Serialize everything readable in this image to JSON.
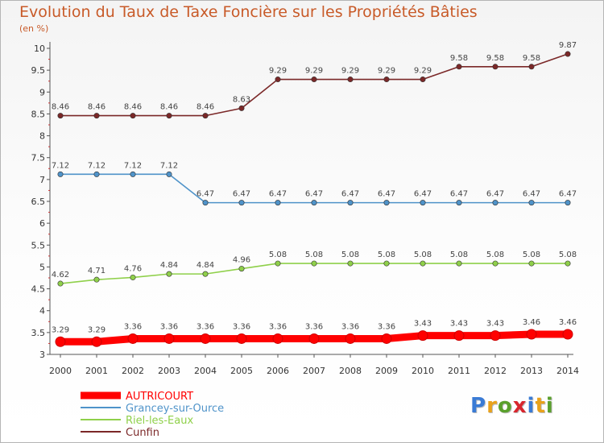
{
  "title": "Evolution du Taux de Taxe Foncière sur les Propriétés Bâties",
  "unit_label": "(en %)",
  "logo": {
    "text": "Proxiti",
    "letters": [
      {
        "ch": "P",
        "color": "#3a7bd5"
      },
      {
        "ch": "r",
        "color": "#e9a21b"
      },
      {
        "ch": "o",
        "color": "#5aa02c"
      },
      {
        "ch": "x",
        "color": "#d8262e"
      },
      {
        "ch": "i",
        "color": "#3a7bd5"
      },
      {
        "ch": "t",
        "color": "#e9a21b"
      },
      {
        "ch": "i",
        "color": "#5aa02c"
      }
    ]
  },
  "chart_data": {
    "type": "line",
    "x": [
      "2000",
      "2001",
      "2002",
      "2003",
      "2004",
      "2005",
      "2006",
      "2007",
      "2008",
      "2009",
      "2010",
      "2011",
      "2012",
      "2013",
      "2014"
    ],
    "ylim": [
      3,
      10
    ],
    "yticks": [
      3,
      3.5,
      4,
      4.5,
      5,
      5.5,
      6,
      6.5,
      7,
      7.5,
      8,
      8.5,
      9,
      9.5,
      10
    ],
    "grid": false,
    "legend_position": "bottom-left",
    "series": [
      {
        "name": "AUTRICOURT",
        "color": "#ff0000",
        "values": [
          3.29,
          3.29,
          3.36,
          3.36,
          3.36,
          3.36,
          3.36,
          3.36,
          3.36,
          3.36,
          3.43,
          3.43,
          3.43,
          3.46,
          3.46
        ]
      },
      {
        "name": "Grancey-sur-Ource",
        "color": "#4f93c9",
        "values": [
          7.12,
          7.12,
          7.12,
          7.12,
          6.47,
          6.47,
          6.47,
          6.47,
          6.47,
          6.47,
          6.47,
          6.47,
          6.47,
          6.47,
          6.47
        ]
      },
      {
        "name": "Riel-les-Eaux",
        "color": "#8fd04a",
        "values": [
          4.62,
          4.71,
          4.76,
          4.84,
          4.84,
          4.96,
          5.08,
          5.08,
          5.08,
          5.08,
          5.08,
          5.08,
          5.08,
          5.08,
          5.08
        ]
      },
      {
        "name": "Cunfin",
        "color": "#7b2828",
        "values": [
          8.46,
          8.46,
          8.46,
          8.46,
          8.46,
          8.63,
          9.29,
          9.29,
          9.29,
          9.29,
          9.29,
          9.58,
          9.58,
          9.58,
          9.87
        ]
      }
    ]
  }
}
